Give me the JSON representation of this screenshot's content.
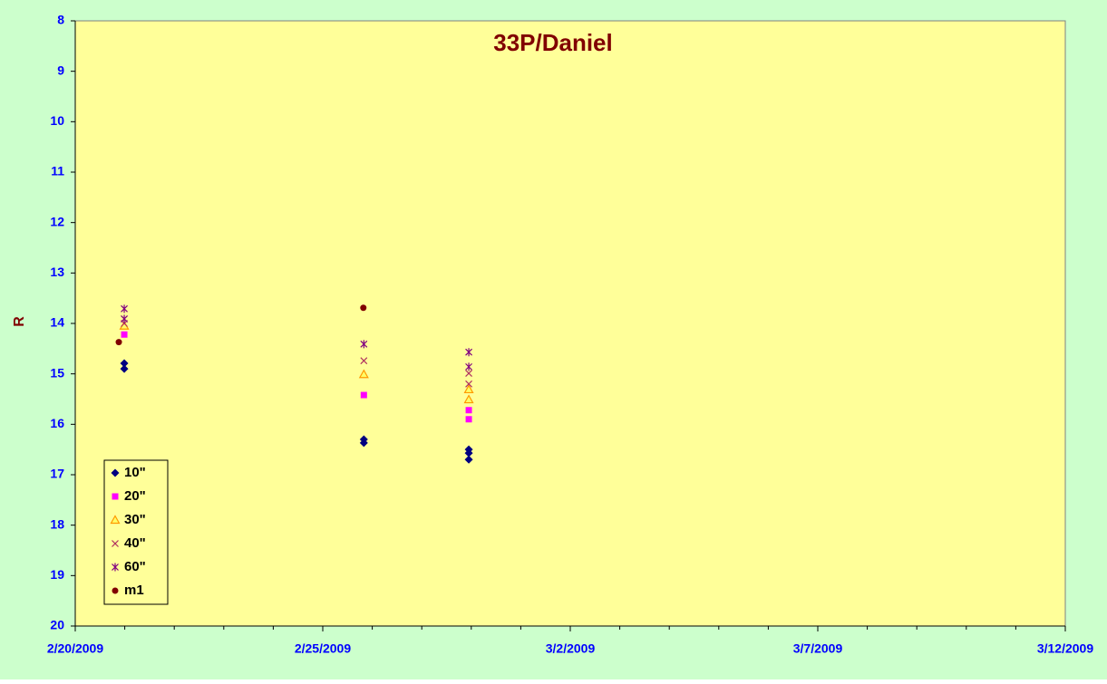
{
  "chart_data": {
    "type": "scatter",
    "title": "33P/Daniel",
    "y_label": "R",
    "xlim": [
      39864,
      39884
    ],
    "xticks": [
      {
        "value": 39864,
        "label": "2/20/2009"
      },
      {
        "value": 39869,
        "label": "2/25/2009"
      },
      {
        "value": 39874,
        "label": "3/2/2009"
      },
      {
        "value": 39879,
        "label": "3/7/2009"
      },
      {
        "value": 39884,
        "label": "3/12/2009"
      }
    ],
    "ylim": [
      8,
      20
    ],
    "y_reversed": true,
    "yticks": [
      8,
      9,
      10,
      11,
      12,
      13,
      14,
      15,
      16,
      17,
      18,
      19,
      20
    ],
    "legend": "lower left",
    "series": [
      {
        "name": "10\"",
        "color": "#000080",
        "marker": "diamond",
        "x": [
          39864.99,
          39864.99,
          39869.83,
          39869.83,
          39871.95,
          39871.95,
          39871.95
        ],
        "values": [
          14.79,
          14.9,
          16.3,
          16.37,
          16.5,
          16.57,
          16.7
        ]
      },
      {
        "name": "20\"",
        "color": "#ff00ff",
        "marker": "square",
        "x": [
          39864.99,
          39869.83,
          39871.95,
          39871.95
        ],
        "values": [
          14.22,
          15.42,
          15.72,
          15.9
        ]
      },
      {
        "name": "30\"",
        "color": "#ff9900",
        "marker": "triangle",
        "x": [
          39864.99,
          39869.83,
          39871.95,
          39871.95
        ],
        "values": [
          14.05,
          15.01,
          15.31,
          15.51
        ]
      },
      {
        "name": "40\"",
        "color": "#b03060",
        "marker": "cross",
        "x": [
          39864.99,
          39864.99,
          39869.83,
          39871.95,
          39871.95
        ],
        "values": [
          13.91,
          14.0,
          14.74,
          14.99,
          15.2
        ]
      },
      {
        "name": "60\"",
        "color": "#800080",
        "marker": "star",
        "x": [
          39864.99,
          39864.99,
          39869.83,
          39871.95,
          39871.95
        ],
        "values": [
          13.71,
          13.91,
          14.41,
          14.57,
          14.86
        ]
      },
      {
        "name": "m1",
        "color": "#800000",
        "marker": "circle",
        "x": [
          39864.88,
          39869.82
        ],
        "values": [
          14.37,
          13.69
        ]
      }
    ]
  }
}
